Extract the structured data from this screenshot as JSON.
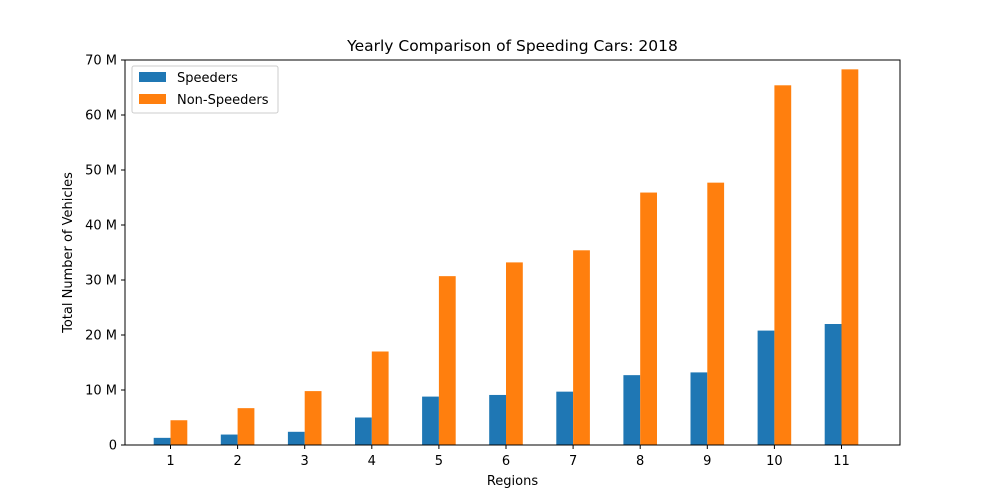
{
  "chart_data": {
    "type": "bar",
    "title": "Yearly Comparison of Speeding Cars: 2018",
    "xlabel": "Regions",
    "ylabel": "Total Number of Vehicles",
    "categories": [
      "1",
      "2",
      "3",
      "4",
      "5",
      "6",
      "7",
      "8",
      "9",
      "10",
      "11"
    ],
    "ylim": [
      0,
      70000000
    ],
    "yticks": [
      0,
      10000000,
      20000000,
      30000000,
      40000000,
      50000000,
      60000000,
      70000000
    ],
    "ytick_labels": [
      "0",
      "10 M",
      "20 M",
      "30 M",
      "40 M",
      "50 M",
      "60 M",
      "70 M"
    ],
    "grid": false,
    "legend_position": "top-left",
    "series": [
      {
        "name": "Speeders",
        "color": "#1f77b4",
        "values": [
          1300000,
          1900000,
          2400000,
          5000000,
          8800000,
          9100000,
          9700000,
          12700000,
          13200000,
          20800000,
          22000000
        ]
      },
      {
        "name": "Non-Speeders",
        "color": "#ff7f0e",
        "values": [
          4500000,
          6700000,
          9800000,
          17000000,
          30700000,
          33200000,
          35400000,
          45900000,
          47700000,
          65400000,
          68300000
        ]
      }
    ]
  }
}
